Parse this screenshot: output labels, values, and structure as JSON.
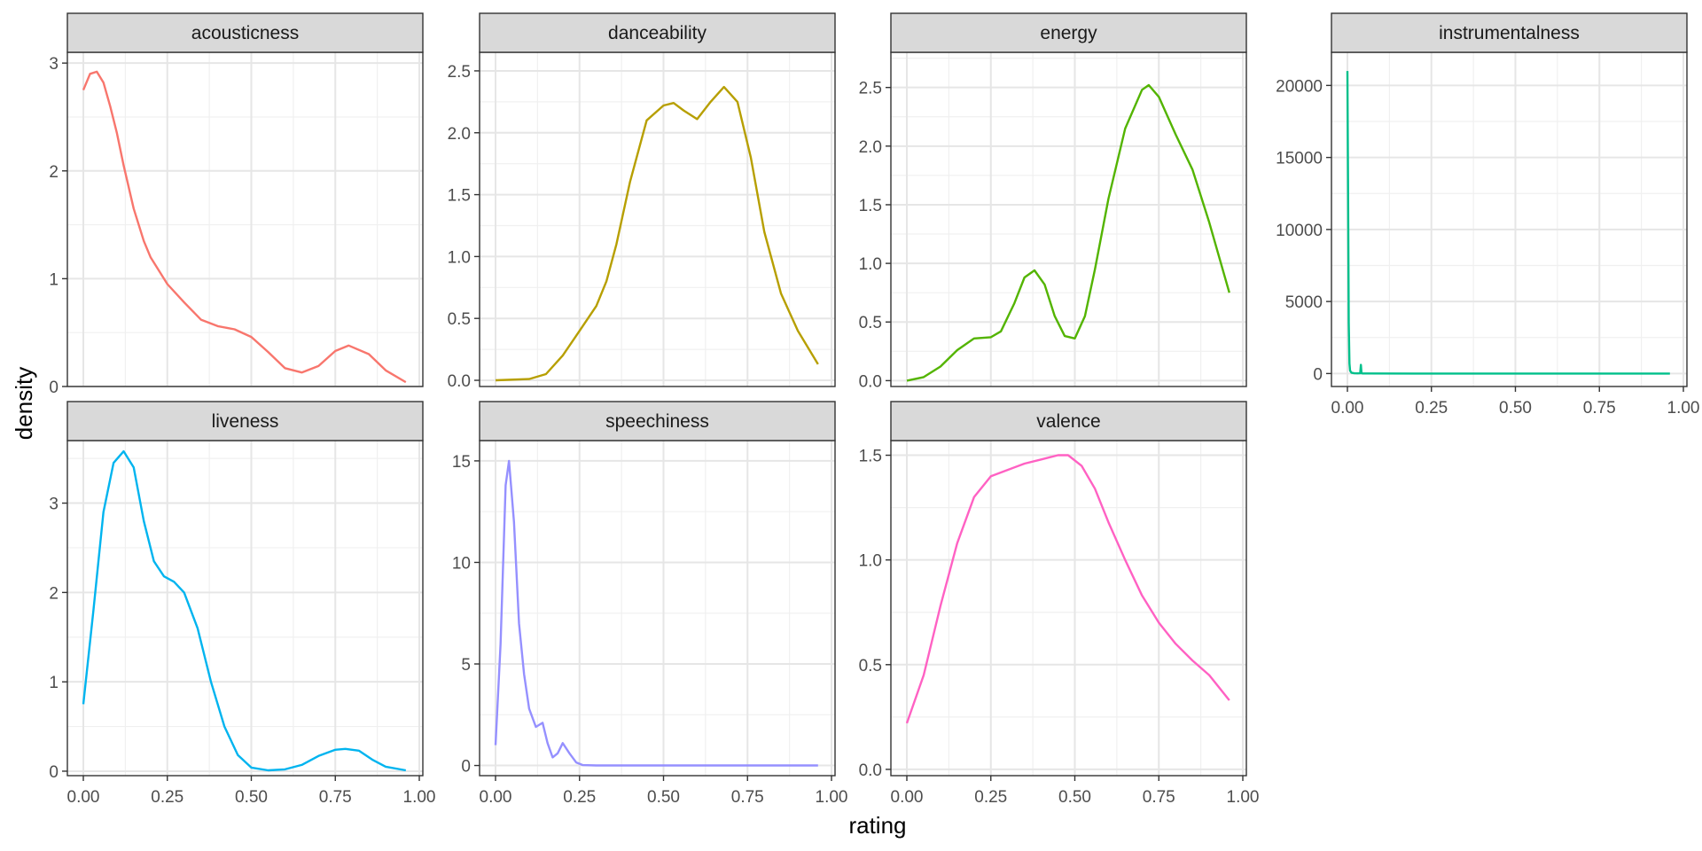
{
  "chart_data": {
    "type": "line",
    "xlabel": "rating",
    "ylabel": "density",
    "legend": "none",
    "grid": true,
    "xlim": [
      0,
      1
    ],
    "xticks": [
      0,
      0.25,
      0.5,
      0.75,
      1
    ],
    "xtick_labels": [
      "0.00",
      "0.25",
      "0.50",
      "0.75",
      "1.00"
    ],
    "panels": [
      {
        "title": "acousticness",
        "color": "#F8766D",
        "ylim": [
          0,
          3.1
        ],
        "yticks": [
          0,
          1,
          2,
          3
        ],
        "ytick_labels": [
          "0",
          "1",
          "2",
          "3"
        ],
        "x": [
          0,
          0.02,
          0.04,
          0.06,
          0.08,
          0.1,
          0.12,
          0.15,
          0.18,
          0.2,
          0.25,
          0.3,
          0.35,
          0.4,
          0.45,
          0.5,
          0.55,
          0.6,
          0.65,
          0.7,
          0.75,
          0.79,
          0.85,
          0.9,
          0.96
        ],
        "y": [
          2.75,
          2.9,
          2.92,
          2.82,
          2.6,
          2.35,
          2.05,
          1.65,
          1.35,
          1.2,
          0.95,
          0.78,
          0.62,
          0.56,
          0.53,
          0.46,
          0.32,
          0.17,
          0.13,
          0.19,
          0.33,
          0.38,
          0.3,
          0.15,
          0.04
        ]
      },
      {
        "title": "danceability",
        "color": "#B79F00",
        "ylim": [
          -0.05,
          2.65
        ],
        "yticks": [
          0,
          0.5,
          1,
          1.5,
          2,
          2.5
        ],
        "ytick_labels": [
          "0.0",
          "0.5",
          "1.0",
          "1.5",
          "2.0",
          "2.5"
        ],
        "x": [
          0,
          0.1,
          0.15,
          0.2,
          0.25,
          0.3,
          0.33,
          0.36,
          0.4,
          0.45,
          0.5,
          0.53,
          0.56,
          0.6,
          0.64,
          0.68,
          0.72,
          0.76,
          0.8,
          0.85,
          0.9,
          0.96
        ],
        "y": [
          0,
          0.01,
          0.05,
          0.2,
          0.4,
          0.6,
          0.8,
          1.1,
          1.6,
          2.1,
          2.22,
          2.24,
          2.18,
          2.11,
          2.25,
          2.37,
          2.25,
          1.8,
          1.2,
          0.7,
          0.4,
          0.13
        ]
      },
      {
        "title": "energy",
        "color": "#00BA38",
        "stroke_color": "#53B400",
        "ylim": [
          -0.05,
          2.8
        ],
        "yticks": [
          0,
          0.5,
          1,
          1.5,
          2,
          2.5
        ],
        "ytick_labels": [
          "0.0",
          "0.5",
          "1.0",
          "1.5",
          "2.0",
          "2.5"
        ],
        "x": [
          0,
          0.05,
          0.1,
          0.15,
          0.2,
          0.25,
          0.28,
          0.32,
          0.35,
          0.38,
          0.41,
          0.44,
          0.47,
          0.5,
          0.53,
          0.56,
          0.6,
          0.65,
          0.7,
          0.72,
          0.75,
          0.8,
          0.85,
          0.9,
          0.96
        ],
        "y": [
          0,
          0.03,
          0.12,
          0.26,
          0.36,
          0.37,
          0.42,
          0.66,
          0.88,
          0.94,
          0.82,
          0.55,
          0.38,
          0.36,
          0.55,
          0.95,
          1.55,
          2.15,
          2.48,
          2.52,
          2.42,
          2.1,
          1.8,
          1.35,
          0.75
        ]
      },
      {
        "title": "instrumentalness",
        "color": "#00C08B",
        "ylim": [
          -900,
          22300
        ],
        "yticks": [
          0,
          5000,
          10000,
          15000,
          20000
        ],
        "ytick_labels": [
          "0",
          "5000",
          "10000",
          "15000",
          "20000"
        ],
        "x": [
          0,
          0.002,
          0.004,
          0.006,
          0.008,
          0.012,
          0.02,
          0.03,
          0.038,
          0.04,
          0.042,
          0.046,
          0.06,
          0.2,
          0.5,
          0.96
        ],
        "y": [
          21000,
          12000,
          3500,
          700,
          200,
          60,
          20,
          10,
          15,
          600,
          20,
          5,
          3,
          0,
          0,
          0
        ]
      },
      {
        "title": "liveness",
        "color": "#00B4EF",
        "ylim": [
          -0.05,
          3.7
        ],
        "yticks": [
          0,
          1,
          2,
          3
        ],
        "ytick_labels": [
          "0",
          "1",
          "2",
          "3"
        ],
        "x": [
          0,
          0.03,
          0.06,
          0.09,
          0.12,
          0.15,
          0.18,
          0.21,
          0.24,
          0.27,
          0.3,
          0.34,
          0.38,
          0.42,
          0.46,
          0.5,
          0.55,
          0.6,
          0.65,
          0.7,
          0.75,
          0.78,
          0.82,
          0.86,
          0.9,
          0.96
        ],
        "y": [
          0.75,
          1.8,
          2.9,
          3.45,
          3.58,
          3.4,
          2.8,
          2.35,
          2.18,
          2.12,
          2.0,
          1.6,
          1.0,
          0.5,
          0.18,
          0.04,
          0.01,
          0.02,
          0.07,
          0.17,
          0.24,
          0.25,
          0.23,
          0.13,
          0.05,
          0.01
        ]
      },
      {
        "title": "speechiness",
        "color": "#9590FF",
        "ylim": [
          -0.5,
          16
        ],
        "yticks": [
          0,
          5,
          10,
          15
        ],
        "ytick_labels": [
          "0",
          "5",
          "10",
          "15"
        ],
        "x": [
          0,
          0.015,
          0.03,
          0.04,
          0.055,
          0.07,
          0.085,
          0.1,
          0.12,
          0.14,
          0.155,
          0.17,
          0.185,
          0.2,
          0.22,
          0.24,
          0.26,
          0.3,
          0.5,
          0.96
        ],
        "y": [
          1,
          6,
          13.8,
          15,
          12,
          7,
          4.5,
          2.8,
          1.9,
          2.1,
          1.1,
          0.4,
          0.6,
          1.1,
          0.6,
          0.15,
          0.02,
          0,
          0,
          0
        ]
      },
      {
        "title": "valence",
        "color": "#FF61C3",
        "ylim": [
          -0.03,
          1.57
        ],
        "yticks": [
          0,
          0.5,
          1,
          1.5
        ],
        "ytick_labels": [
          "0.0",
          "0.5",
          "1.0",
          "1.5"
        ],
        "x": [
          0,
          0.05,
          0.1,
          0.15,
          0.2,
          0.25,
          0.3,
          0.35,
          0.4,
          0.45,
          0.48,
          0.52,
          0.56,
          0.6,
          0.65,
          0.7,
          0.75,
          0.8,
          0.85,
          0.9,
          0.96
        ],
        "y": [
          0.22,
          0.45,
          0.78,
          1.08,
          1.3,
          1.4,
          1.43,
          1.46,
          1.48,
          1.5,
          1.5,
          1.45,
          1.34,
          1.18,
          1.0,
          0.83,
          0.7,
          0.6,
          0.52,
          0.45,
          0.33
        ]
      }
    ]
  }
}
